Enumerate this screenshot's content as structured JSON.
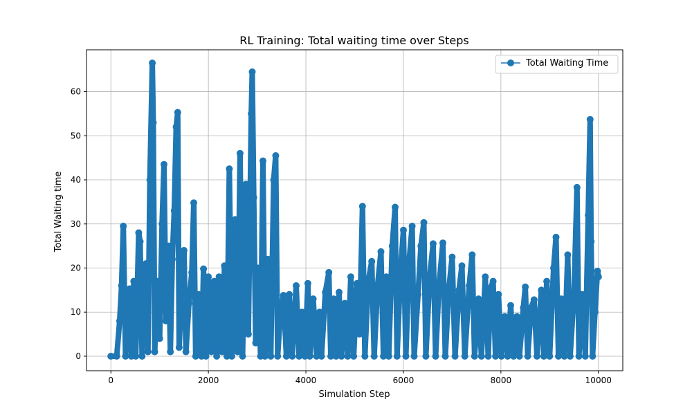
{
  "chart_data": {
    "type": "line",
    "title": "RL Training: Total waiting time over Steps",
    "xlabel": "Simulation Step",
    "ylabel": "Total Waiting time",
    "xlim": [
      -500,
      10500
    ],
    "ylim": [
      -3.3,
      69.5
    ],
    "xticks": [
      0,
      2000,
      4000,
      6000,
      8000,
      10000
    ],
    "yticks": [
      0,
      10,
      20,
      30,
      40,
      50,
      60
    ],
    "grid": true,
    "legend_position": "top-right",
    "series": [
      {
        "name": "Total Waiting Time",
        "color": "#1f77b4",
        "marker": "circle",
        "peaks": [
          [
            0,
            0
          ],
          [
            120,
            0
          ],
          [
            180,
            8
          ],
          [
            220,
            16
          ],
          [
            255,
            29.5
          ],
          [
            300,
            0
          ],
          [
            340,
            14
          ],
          [
            385,
            15.3
          ],
          [
            420,
            0
          ],
          [
            470,
            17
          ],
          [
            510,
            0
          ],
          [
            570,
            28
          ],
          [
            600,
            26
          ],
          [
            640,
            0
          ],
          [
            680,
            20
          ],
          [
            720,
            21
          ],
          [
            760,
            1
          ],
          [
            800,
            40
          ],
          [
            850,
            66.5
          ],
          [
            870,
            53
          ],
          [
            900,
            1
          ],
          [
            950,
            17
          ],
          [
            1000,
            4
          ],
          [
            1050,
            30
          ],
          [
            1090,
            43.5
          ],
          [
            1130,
            8
          ],
          [
            1180,
            25
          ],
          [
            1220,
            1
          ],
          [
            1260,
            22
          ],
          [
            1300,
            33
          ],
          [
            1340,
            52
          ],
          [
            1370,
            55.3
          ],
          [
            1400,
            2
          ],
          [
            1450,
            15
          ],
          [
            1500,
            24
          ],
          [
            1540,
            1
          ],
          [
            1600,
            12
          ],
          [
            1660,
            19
          ],
          [
            1700,
            34.8
          ],
          [
            1740,
            0
          ],
          [
            1800,
            14
          ],
          [
            1860,
            0
          ],
          [
            1900,
            19.8
          ],
          [
            1950,
            0
          ],
          [
            2000,
            18
          ],
          [
            2060,
            1
          ],
          [
            2120,
            17
          ],
          [
            2170,
            0
          ],
          [
            2220,
            18
          ],
          [
            2280,
            1
          ],
          [
            2330,
            20.5
          ],
          [
            2380,
            0
          ],
          [
            2430,
            42.5
          ],
          [
            2480,
            0
          ],
          [
            2550,
            31
          ],
          [
            2600,
            1
          ],
          [
            2650,
            46
          ],
          [
            2700,
            0
          ],
          [
            2770,
            39
          ],
          [
            2820,
            5
          ],
          [
            2880,
            55
          ],
          [
            2900,
            64.5
          ],
          [
            2930,
            36
          ],
          [
            2970,
            3
          ],
          [
            3020,
            20
          ],
          [
            3070,
            0
          ],
          [
            3120,
            44.3
          ],
          [
            3160,
            0
          ],
          [
            3220,
            22
          ],
          [
            3280,
            0
          ],
          [
            3340,
            40
          ],
          [
            3380,
            45.5
          ],
          [
            3420,
            0
          ],
          [
            3480,
            10
          ],
          [
            3540,
            13.8
          ],
          [
            3600,
            0
          ],
          [
            3660,
            14
          ],
          [
            3720,
            0
          ],
          [
            3800,
            16
          ],
          [
            3860,
            0
          ],
          [
            3920,
            10
          ],
          [
            3980,
            0
          ],
          [
            4040,
            16.5
          ],
          [
            4080,
            0
          ],
          [
            4150,
            13
          ],
          [
            4220,
            0
          ],
          [
            4280,
            10
          ],
          [
            4320,
            0
          ],
          [
            4400,
            14.5
          ],
          [
            4470,
            19
          ],
          [
            4510,
            0
          ],
          [
            4570,
            13
          ],
          [
            4620,
            0
          ],
          [
            4680,
            14.5
          ],
          [
            4730,
            0
          ],
          [
            4800,
            12
          ],
          [
            4860,
            0
          ],
          [
            4920,
            18
          ],
          [
            4980,
            0
          ],
          [
            5050,
            16.5
          ],
          [
            5100,
            5
          ],
          [
            5160,
            34
          ],
          [
            5210,
            0
          ],
          [
            5280,
            17
          ],
          [
            5350,
            21.5
          ],
          [
            5400,
            0
          ],
          [
            5470,
            16
          ],
          [
            5540,
            23.7
          ],
          [
            5590,
            0
          ],
          [
            5650,
            18
          ],
          [
            5700,
            0
          ],
          [
            5770,
            25
          ],
          [
            5830,
            33.8
          ],
          [
            5870,
            0
          ],
          [
            5940,
            19
          ],
          [
            6000,
            28.6
          ],
          [
            6050,
            0
          ],
          [
            6120,
            22
          ],
          [
            6180,
            29.5
          ],
          [
            6220,
            0
          ],
          [
            6300,
            14
          ],
          [
            6360,
            25
          ],
          [
            6420,
            30.3
          ],
          [
            6460,
            0
          ],
          [
            6540,
            18
          ],
          [
            6610,
            25.5
          ],
          [
            6660,
            0
          ],
          [
            6730,
            16
          ],
          [
            6810,
            25.7
          ],
          [
            6860,
            0
          ],
          [
            6930,
            15
          ],
          [
            7000,
            22.5
          ],
          [
            7060,
            0
          ],
          [
            7140,
            15
          ],
          [
            7200,
            20.5
          ],
          [
            7260,
            0
          ],
          [
            7350,
            16
          ],
          [
            7410,
            23
          ],
          [
            7460,
            0
          ],
          [
            7540,
            13
          ],
          [
            7600,
            0
          ],
          [
            7680,
            18
          ],
          [
            7740,
            0
          ],
          [
            7790,
            15.5
          ],
          [
            7840,
            17
          ],
          [
            7890,
            0
          ],
          [
            7950,
            14
          ],
          [
            8010,
            0
          ],
          [
            8080,
            9
          ],
          [
            8140,
            0
          ],
          [
            8200,
            11.5
          ],
          [
            8260,
            0
          ],
          [
            8330,
            9
          ],
          [
            8380,
            0
          ],
          [
            8460,
            11
          ],
          [
            8500,
            15.7
          ],
          [
            8550,
            0
          ],
          [
            8620,
            11
          ],
          [
            8680,
            12.8
          ],
          [
            8740,
            0
          ],
          [
            8830,
            15
          ],
          [
            8880,
            0
          ],
          [
            8940,
            17
          ],
          [
            9000,
            0
          ],
          [
            9080,
            20
          ],
          [
            9130,
            27
          ],
          [
            9180,
            0
          ],
          [
            9240,
            13
          ],
          [
            9300,
            0
          ],
          [
            9370,
            23
          ],
          [
            9420,
            0
          ],
          [
            9500,
            14
          ],
          [
            9560,
            38.3
          ],
          [
            9600,
            0
          ],
          [
            9670,
            14
          ],
          [
            9730,
            0
          ],
          [
            9790,
            32
          ],
          [
            9830,
            53.7
          ],
          [
            9850,
            26
          ],
          [
            9880,
            0
          ],
          [
            9930,
            10
          ],
          [
            9980,
            19.3
          ],
          [
            10000,
            18
          ]
        ]
      }
    ]
  }
}
